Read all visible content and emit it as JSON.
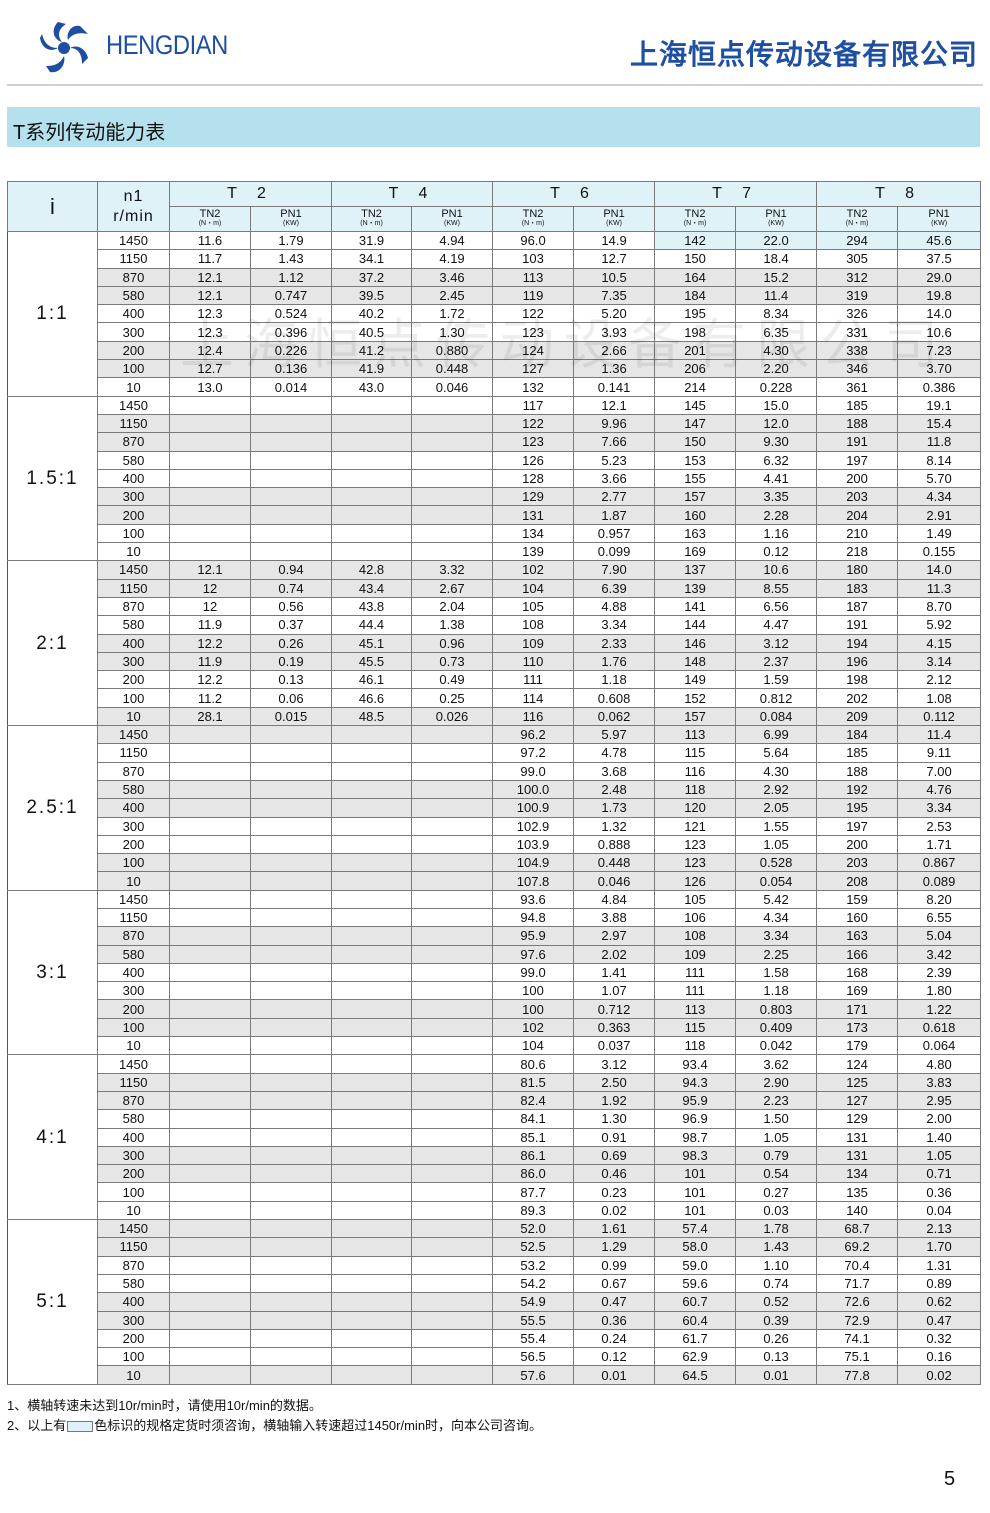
{
  "header": {
    "brand": "HENGDIAN",
    "company": "上海恒点传动设备有限公司",
    "title": "T系列传动能力表"
  },
  "watermark": "上海恒点传动设备有限公司",
  "table": {
    "col_i": "i",
    "col_n1": "n1",
    "col_n1_unit": "r/min",
    "models": [
      "T 2",
      "T 4",
      "T 6",
      "T 7",
      "T 8"
    ],
    "tn_label": "TN2",
    "tn_unit": "(N・m)",
    "pn_label": "PN1",
    "pn_unit": "(KW)",
    "highlight_color": "#dff2f8",
    "groups": [
      {
        "ratio": "1:1",
        "rows": [
          [
            "1450",
            "11.6",
            "1.79",
            "31.9",
            "4.94",
            "96.0",
            "14.9",
            "142",
            "22.0",
            "294",
            "45.6"
          ],
          [
            "1150",
            "11.7",
            "1.43",
            "34.1",
            "4.19",
            "103",
            "12.7",
            "150",
            "18.4",
            "305",
            "37.5"
          ],
          [
            "870",
            "12.1",
            "1.12",
            "37.2",
            "3.46",
            "113",
            "10.5",
            "164",
            "15.2",
            "312",
            "29.0"
          ],
          [
            "580",
            "12.1",
            "0.747",
            "39.5",
            "2.45",
            "119",
            "7.35",
            "184",
            "11.4",
            "319",
            "19.8"
          ],
          [
            "400",
            "12.3",
            "0.524",
            "40.2",
            "1.72",
            "122",
            "5.20",
            "195",
            "8.34",
            "326",
            "14.0"
          ],
          [
            "300",
            "12.3",
            "0.396",
            "40.5",
            "1.30",
            "123",
            "3.93",
            "198",
            "6.35",
            "331",
            "10.6"
          ],
          [
            "200",
            "12.4",
            "0.226",
            "41.2",
            "0.880",
            "124",
            "2.66",
            "201",
            "4.30",
            "338",
            "7.23"
          ],
          [
            "100",
            "12.7",
            "0.136",
            "41.9",
            "0.448",
            "127",
            "1.36",
            "206",
            "2.20",
            "346",
            "3.70"
          ],
          [
            "10",
            "13.0",
            "0.014",
            "43.0",
            "0.046",
            "132",
            "0.141",
            "214",
            "0.228",
            "361",
            "0.386"
          ]
        ]
      },
      {
        "ratio": "1.5:1",
        "rows": [
          [
            "1450",
            "",
            "",
            "",
            "",
            "117",
            "12.1",
            "145",
            "15.0",
            "185",
            "19.1"
          ],
          [
            "1150",
            "",
            "",
            "",
            "",
            "122",
            "9.96",
            "147",
            "12.0",
            "188",
            "15.4"
          ],
          [
            "870",
            "",
            "",
            "",
            "",
            "123",
            "7.66",
            "150",
            "9.30",
            "191",
            "11.8"
          ],
          [
            "580",
            "",
            "",
            "",
            "",
            "126",
            "5.23",
            "153",
            "6.32",
            "197",
            "8.14"
          ],
          [
            "400",
            "",
            "",
            "",
            "",
            "128",
            "3.66",
            "155",
            "4.41",
            "200",
            "5.70"
          ],
          [
            "300",
            "",
            "",
            "",
            "",
            "129",
            "2.77",
            "157",
            "3.35",
            "203",
            "4.34"
          ],
          [
            "200",
            "",
            "",
            "",
            "",
            "131",
            "1.87",
            "160",
            "2.28",
            "204",
            "2.91"
          ],
          [
            "100",
            "",
            "",
            "",
            "",
            "134",
            "0.957",
            "163",
            "1.16",
            "210",
            "1.49"
          ],
          [
            "10",
            "",
            "",
            "",
            "",
            "139",
            "0.099",
            "169",
            "0.12",
            "218",
            "0.155"
          ]
        ]
      },
      {
        "ratio": "2:1",
        "rows": [
          [
            "1450",
            "12.1",
            "0.94",
            "42.8",
            "3.32",
            "102",
            "7.90",
            "137",
            "10.6",
            "180",
            "14.0"
          ],
          [
            "1150",
            "12",
            "0.74",
            "43.4",
            "2.67",
            "104",
            "6.39",
            "139",
            "8.55",
            "183",
            "11.3"
          ],
          [
            "870",
            "12",
            "0.56",
            "43.8",
            "2.04",
            "105",
            "4.88",
            "141",
            "6.56",
            "187",
            "8.70"
          ],
          [
            "580",
            "11.9",
            "0.37",
            "44.4",
            "1.38",
            "108",
            "3.34",
            "144",
            "4.47",
            "191",
            "5.92"
          ],
          [
            "400",
            "12.2",
            "0.26",
            "45.1",
            "0.96",
            "109",
            "2.33",
            "146",
            "3.12",
            "194",
            "4.15"
          ],
          [
            "300",
            "11.9",
            "0.19",
            "45.5",
            "0.73",
            "110",
            "1.76",
            "148",
            "2.37",
            "196",
            "3.14"
          ],
          [
            "200",
            "12.2",
            "0.13",
            "46.1",
            "0.49",
            "111",
            "1.18",
            "149",
            "1.59",
            "198",
            "2.12"
          ],
          [
            "100",
            "11.2",
            "0.06",
            "46.6",
            "0.25",
            "114",
            "0.608",
            "152",
            "0.812",
            "202",
            "1.08"
          ],
          [
            "10",
            "28.1",
            "0.015",
            "48.5",
            "0.026",
            "116",
            "0.062",
            "157",
            "0.084",
            "209",
            "0.112"
          ]
        ]
      },
      {
        "ratio": "2.5:1",
        "rows": [
          [
            "1450",
            "",
            "",
            "",
            "",
            "96.2",
            "5.97",
            "113",
            "6.99",
            "184",
            "11.4"
          ],
          [
            "1150",
            "",
            "",
            "",
            "",
            "97.2",
            "4.78",
            "115",
            "5.64",
            "185",
            "9.11"
          ],
          [
            "870",
            "",
            "",
            "",
            "",
            "99.0",
            "3.68",
            "116",
            "4.30",
            "188",
            "7.00"
          ],
          [
            "580",
            "",
            "",
            "",
            "",
            "100.0",
            "2.48",
            "118",
            "2.92",
            "192",
            "4.76"
          ],
          [
            "400",
            "",
            "",
            "",
            "",
            "100.9",
            "1.73",
            "120",
            "2.05",
            "195",
            "3.34"
          ],
          [
            "300",
            "",
            "",
            "",
            "",
            "102.9",
            "1.32",
            "121",
            "1.55",
            "197",
            "2.53"
          ],
          [
            "200",
            "",
            "",
            "",
            "",
            "103.9",
            "0.888",
            "123",
            "1.05",
            "200",
            "1.71"
          ],
          [
            "100",
            "",
            "",
            "",
            "",
            "104.9",
            "0.448",
            "123",
            "0.528",
            "203",
            "0.867"
          ],
          [
            "10",
            "",
            "",
            "",
            "",
            "107.8",
            "0.046",
            "126",
            "0.054",
            "208",
            "0.089"
          ]
        ]
      },
      {
        "ratio": "3:1",
        "rows": [
          [
            "1450",
            "",
            "",
            "",
            "",
            "93.6",
            "4.84",
            "105",
            "5.42",
            "159",
            "8.20"
          ],
          [
            "1150",
            "",
            "",
            "",
            "",
            "94.8",
            "3.88",
            "106",
            "4.34",
            "160",
            "6.55"
          ],
          [
            "870",
            "",
            "",
            "",
            "",
            "95.9",
            "2.97",
            "108",
            "3.34",
            "163",
            "5.04"
          ],
          [
            "580",
            "",
            "",
            "",
            "",
            "97.6",
            "2.02",
            "109",
            "2.25",
            "166",
            "3.42"
          ],
          [
            "400",
            "",
            "",
            "",
            "",
            "99.0",
            "1.41",
            "111",
            "1.58",
            "168",
            "2.39"
          ],
          [
            "300",
            "",
            "",
            "",
            "",
            "100",
            "1.07",
            "111",
            "1.18",
            "169",
            "1.80"
          ],
          [
            "200",
            "",
            "",
            "",
            "",
            "100",
            "0.712",
            "113",
            "0.803",
            "171",
            "1.22"
          ],
          [
            "100",
            "",
            "",
            "",
            "",
            "102",
            "0.363",
            "115",
            "0.409",
            "173",
            "0.618"
          ],
          [
            "10",
            "",
            "",
            "",
            "",
            "104",
            "0.037",
            "118",
            "0.042",
            "179",
            "0.064"
          ]
        ]
      },
      {
        "ratio": "4:1",
        "rows": [
          [
            "1450",
            "",
            "",
            "",
            "",
            "80.6",
            "3.12",
            "93.4",
            "3.62",
            "124",
            "4.80"
          ],
          [
            "1150",
            "",
            "",
            "",
            "",
            "81.5",
            "2.50",
            "94.3",
            "2.90",
            "125",
            "3.83"
          ],
          [
            "870",
            "",
            "",
            "",
            "",
            "82.4",
            "1.92",
            "95.9",
            "2.23",
            "127",
            "2.95"
          ],
          [
            "580",
            "",
            "",
            "",
            "",
            "84.1",
            "1.30",
            "96.9",
            "1.50",
            "129",
            "2.00"
          ],
          [
            "400",
            "",
            "",
            "",
            "",
            "85.1",
            "0.91",
            "98.7",
            "1.05",
            "131",
            "1.40"
          ],
          [
            "300",
            "",
            "",
            "",
            "",
            "86.1",
            "0.69",
            "98.3",
            "0.79",
            "131",
            "1.05"
          ],
          [
            "200",
            "",
            "",
            "",
            "",
            "86.0",
            "0.46",
            "101",
            "0.54",
            "134",
            "0.71"
          ],
          [
            "100",
            "",
            "",
            "",
            "",
            "87.7",
            "0.23",
            "101",
            "0.27",
            "135",
            "0.36"
          ],
          [
            "10",
            "",
            "",
            "",
            "",
            "89.3",
            "0.02",
            "101",
            "0.03",
            "140",
            "0.04"
          ]
        ]
      },
      {
        "ratio": "5:1",
        "rows": [
          [
            "1450",
            "",
            "",
            "",
            "",
            "52.0",
            "1.61",
            "57.4",
            "1.78",
            "68.7",
            "2.13"
          ],
          [
            "1150",
            "",
            "",
            "",
            "",
            "52.5",
            "1.29",
            "58.0",
            "1.43",
            "69.2",
            "1.70"
          ],
          [
            "870",
            "",
            "",
            "",
            "",
            "53.2",
            "0.99",
            "59.0",
            "1.10",
            "70.4",
            "1.31"
          ],
          [
            "580",
            "",
            "",
            "",
            "",
            "54.2",
            "0.67",
            "59.6",
            "0.74",
            "71.7",
            "0.89"
          ],
          [
            "400",
            "",
            "",
            "",
            "",
            "54.9",
            "0.47",
            "60.7",
            "0.52",
            "72.6",
            "0.62"
          ],
          [
            "300",
            "",
            "",
            "",
            "",
            "55.5",
            "0.36",
            "60.4",
            "0.39",
            "72.9",
            "0.47"
          ],
          [
            "200",
            "",
            "",
            "",
            "",
            "55.4",
            "0.24",
            "61.7",
            "0.26",
            "74.1",
            "0.32"
          ],
          [
            "100",
            "",
            "",
            "",
            "",
            "56.5",
            "0.12",
            "62.9",
            "0.13",
            "75.1",
            "0.16"
          ],
          [
            "10",
            "",
            "",
            "",
            "",
            "57.6",
            "0.01",
            "64.5",
            "0.01",
            "77.8",
            "0.02"
          ]
        ]
      }
    ]
  },
  "notes": {
    "note1": "1、横轴转速未达到10r/min时，请使用10r/min的数据。",
    "note2_a": "2、以上有",
    "note2_b": "色标识的规格定货时须咨询，横轴输入转速超过1450r/min时，向本公司咨询。"
  },
  "page_number": "5"
}
